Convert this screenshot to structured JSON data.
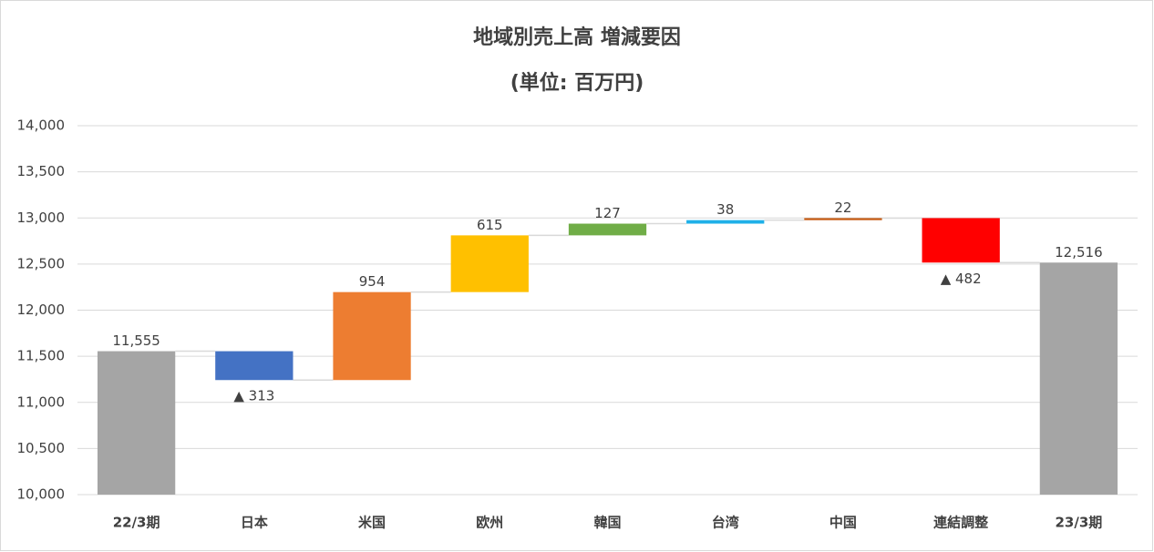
{
  "chart_data": {
    "type": "waterfall",
    "title": "地域別売上高 増減要因",
    "subtitle": "(単位: 百万円)",
    "categories": [
      "22/3期",
      "日本",
      "米国",
      "欧州",
      "韓国",
      "台湾",
      "中国",
      "連結調整",
      "23/3期"
    ],
    "values": [
      11555,
      -313,
      954,
      615,
      127,
      38,
      22,
      -482,
      12516
    ],
    "value_labels": [
      "11,555",
      "▲ 313",
      "954",
      "615",
      "127",
      "38",
      "22",
      "▲ 482",
      "12,516"
    ],
    "total": [
      true,
      false,
      false,
      false,
      false,
      false,
      false,
      false,
      true
    ],
    "colors": [
      "#a5a5a5",
      "#4472c4",
      "#ed7d31",
      "#ffc000",
      "#70ad47",
      "#1fb0e8",
      "#c55a11",
      "#ff0000",
      "#a5a5a5"
    ],
    "ylim": [
      10000,
      14000
    ],
    "yticks": [
      {
        "value": 10000,
        "label": "10,000"
      },
      {
        "value": 10500,
        "label": "10,500"
      },
      {
        "value": 11000,
        "label": "11,000"
      },
      {
        "value": 11500,
        "label": "11,500"
      },
      {
        "value": 12000,
        "label": "12,000"
      },
      {
        "value": 12500,
        "label": "12,500"
      },
      {
        "value": 13000,
        "label": "13,000"
      },
      {
        "value": 13500,
        "label": "13,500"
      },
      {
        "value": 14000,
        "label": "14,000"
      }
    ],
    "grid": true
  }
}
